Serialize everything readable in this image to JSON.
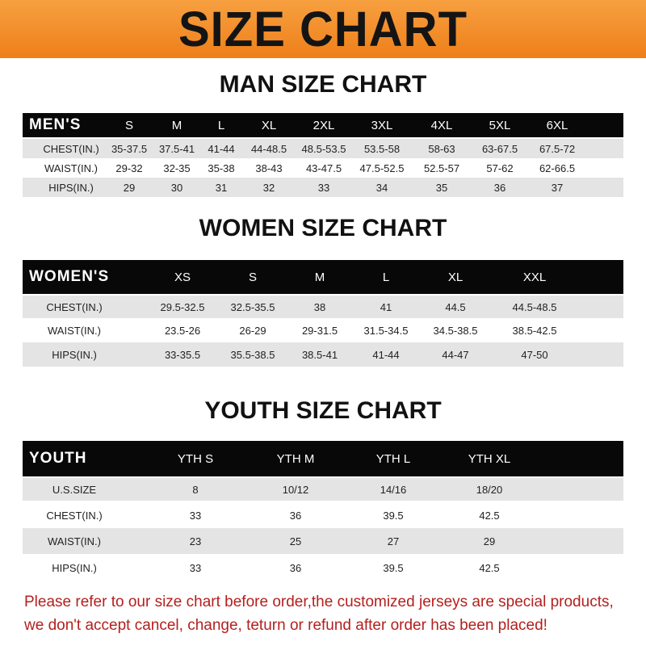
{
  "banner_title": "SIZE CHART",
  "colors": {
    "banner": "#ee7f1a",
    "header_row": "#080808",
    "stripe": "#e4e4e4",
    "note": "#b3201e"
  },
  "men": {
    "title": "MAN SIZE CHART",
    "header": [
      "MEN'S",
      "S",
      "M",
      "L",
      "XL",
      "2XL",
      "3XL",
      "4XL",
      "5XL",
      "6XL"
    ],
    "rows": [
      [
        "CHEST(IN.)",
        "35-37.5",
        "37.5-41",
        "41-44",
        "44-48.5",
        "48.5-53.5",
        "53.5-58",
        "58-63",
        "63-67.5",
        "67.5-72"
      ],
      [
        "WAIST(IN.)",
        "29-32",
        "32-35",
        "35-38",
        "38-43",
        "43-47.5",
        "47.5-52.5",
        "52.5-57",
        "57-62",
        "62-66.5"
      ],
      [
        "HIPS(IN.)",
        "29",
        "30",
        "31",
        "32",
        "33",
        "34",
        "35",
        "36",
        "37"
      ]
    ]
  },
  "women": {
    "title": "WOMEN SIZE CHART",
    "header": [
      "WOMEN'S",
      "XS",
      "S",
      "M",
      "L",
      "XL",
      "XXL"
    ],
    "rows": [
      [
        "CHEST(IN.)",
        "29.5-32.5",
        "32.5-35.5",
        "38",
        "41",
        "44.5",
        "44.5-48.5"
      ],
      [
        "WAIST(IN.)",
        "23.5-26",
        "26-29",
        "29-31.5",
        "31.5-34.5",
        "34.5-38.5",
        "38.5-42.5"
      ],
      [
        "HIPS(IN.)",
        "33-35.5",
        "35.5-38.5",
        "38.5-41",
        "41-44",
        "44-47",
        "47-50"
      ]
    ]
  },
  "youth": {
    "title": "YOUTH SIZE CHART",
    "header": [
      "YOUTH",
      "YTH S",
      "YTH M",
      "YTH L",
      "YTH XL"
    ],
    "rows": [
      [
        "U.S.SIZE",
        "8",
        "10/12",
        "14/16",
        "18/20"
      ],
      [
        "CHEST(IN.)",
        "33",
        "36",
        "39.5",
        "42.5"
      ],
      [
        "WAIST(IN.)",
        "23",
        "25",
        "27",
        "29"
      ],
      [
        "HIPS(IN.)",
        "33",
        "36",
        "39.5",
        "42.5"
      ]
    ]
  },
  "note": {
    "line1": "Please refer to our size chart before order,the customized jerseys are special products,",
    "line2": "we don't accept cancel, change, teturn or refund after order has been placed!"
  }
}
